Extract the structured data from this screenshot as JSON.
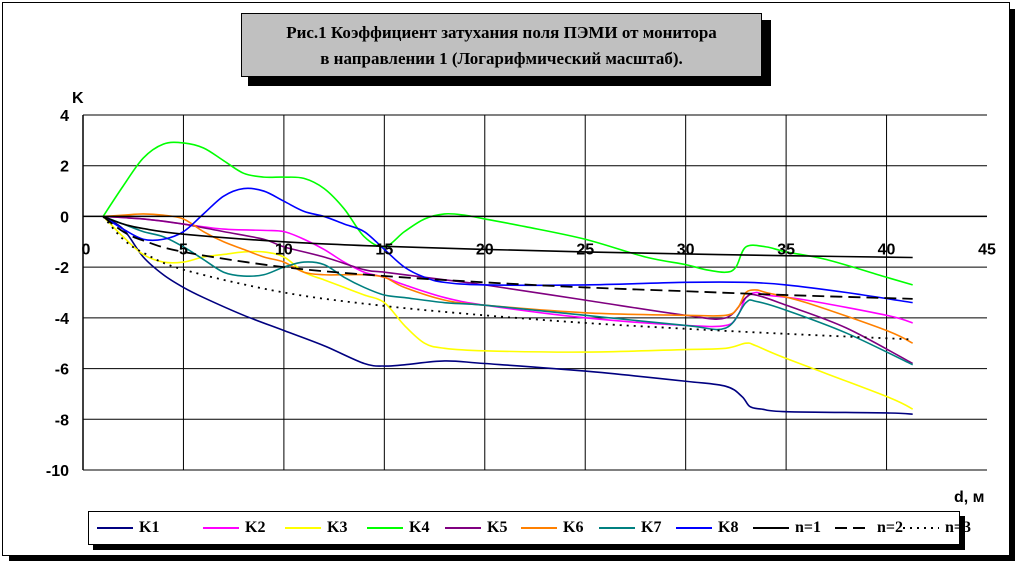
{
  "title": {
    "line1": "Рис.1 Коэффициент затухания поля ПЭМИ от  монитора",
    "line2": "в направлении 1 (Логарифмический масштаб)."
  },
  "colors": {
    "K1": "#000080",
    "K2": "#ff00ff",
    "K3": "#ffff00",
    "K4": "#00ff00",
    "K5": "#800080",
    "K6": "#ff8000",
    "K7": "#008080",
    "K8": "#0000ff",
    "n1": "#000000",
    "n2": "#000000",
    "n3": "#000000"
  },
  "chart_data": {
    "type": "line",
    "title": "Рис.1 Коэффициент затухания поля ПЭМИ от  монитора в направлении 1 (Логарифмический масштаб).",
    "xlabel": "d, м",
    "ylabel": "K",
    "xlim": [
      0,
      45
    ],
    "ylim": [
      -10,
      4
    ],
    "xticks": [
      "0",
      "5",
      "10",
      "15",
      "20",
      "25",
      "30",
      "35",
      "40",
      "45"
    ],
    "yticks": [
      "4",
      "2",
      "0",
      "-2",
      "-4",
      "-6",
      "-8",
      "-10"
    ],
    "grid": true,
    "legend_position": "bottom",
    "series": [
      {
        "name": "K1",
        "key": "K1",
        "dash": "",
        "points": [
          [
            1,
            0
          ],
          [
            2,
            -0.5
          ],
          [
            3,
            -1.6
          ],
          [
            4,
            -2.3
          ],
          [
            5,
            -2.8
          ],
          [
            6,
            -3.2
          ],
          [
            8,
            -3.9
          ],
          [
            10,
            -4.5
          ],
          [
            12,
            -5.1
          ],
          [
            14,
            -5.8
          ],
          [
            15,
            -5.9
          ],
          [
            16,
            -5.85
          ],
          [
            18,
            -5.7
          ],
          [
            20,
            -5.8
          ],
          [
            25,
            -6.1
          ],
          [
            30,
            -6.5
          ],
          [
            32,
            -6.7
          ],
          [
            32.8,
            -7.1
          ],
          [
            33.2,
            -7.5
          ],
          [
            33.8,
            -7.6
          ],
          [
            35,
            -7.7
          ],
          [
            40,
            -7.75
          ],
          [
            41.3,
            -7.8
          ]
        ]
      },
      {
        "name": "K2",
        "key": "K2",
        "dash": "",
        "points": [
          [
            1,
            0
          ],
          [
            3,
            -0.1
          ],
          [
            5,
            -0.3
          ],
          [
            7,
            -0.5
          ],
          [
            9,
            -0.55
          ],
          [
            10,
            -0.6
          ],
          [
            11,
            -0.9
          ],
          [
            12,
            -1.3
          ],
          [
            13,
            -1.8
          ],
          [
            14,
            -2.2
          ],
          [
            15,
            -2.4
          ],
          [
            16,
            -2.7
          ],
          [
            18,
            -3.2
          ],
          [
            20,
            -3.5
          ],
          [
            25,
            -4.0
          ],
          [
            30,
            -4.3
          ],
          [
            32,
            -4.3
          ],
          [
            32.6,
            -3.9
          ],
          [
            33,
            -3.2
          ],
          [
            33.5,
            -3.0
          ],
          [
            34,
            -3.1
          ],
          [
            36,
            -3.3
          ],
          [
            40,
            -3.9
          ],
          [
            41.3,
            -4.2
          ]
        ]
      },
      {
        "name": "K3",
        "key": "K3",
        "dash": "",
        "points": [
          [
            1,
            0
          ],
          [
            2,
            -0.8
          ],
          [
            3,
            -1.5
          ],
          [
            4,
            -1.8
          ],
          [
            5,
            -1.8
          ],
          [
            6,
            -1.6
          ],
          [
            7,
            -1.5
          ],
          [
            8,
            -1.4
          ],
          [
            9,
            -1.4
          ],
          [
            10,
            -1.6
          ],
          [
            11,
            -2.2
          ],
          [
            12,
            -2.5
          ],
          [
            13,
            -2.8
          ],
          [
            14,
            -3.1
          ],
          [
            15,
            -3.4
          ],
          [
            16,
            -4.3
          ],
          [
            17,
            -5.0
          ],
          [
            18,
            -5.2
          ],
          [
            20,
            -5.3
          ],
          [
            25,
            -5.35
          ],
          [
            30,
            -5.25
          ],
          [
            32,
            -5.2
          ],
          [
            33,
            -5.0
          ],
          [
            33.5,
            -5.1
          ],
          [
            35,
            -5.6
          ],
          [
            40,
            -7.1
          ],
          [
            41.3,
            -7.6
          ]
        ]
      },
      {
        "name": "K4",
        "key": "K4",
        "dash": "",
        "points": [
          [
            1,
            0
          ],
          [
            2,
            1.2
          ],
          [
            3,
            2.3
          ],
          [
            4,
            2.85
          ],
          [
            5,
            2.9
          ],
          [
            6,
            2.7
          ],
          [
            7,
            2.2
          ],
          [
            8,
            1.7
          ],
          [
            9,
            1.55
          ],
          [
            10,
            1.55
          ],
          [
            11,
            1.5
          ],
          [
            12,
            1.1
          ],
          [
            13,
            0.3
          ],
          [
            14,
            -0.8
          ],
          [
            15,
            -1.2
          ],
          [
            16,
            -0.6
          ],
          [
            17,
            -0.1
          ],
          [
            18,
            0.1
          ],
          [
            19,
            0.05
          ],
          [
            20,
            -0.1
          ],
          [
            22,
            -0.4
          ],
          [
            25,
            -0.9
          ],
          [
            28,
            -1.6
          ],
          [
            30,
            -1.9
          ],
          [
            31,
            -2.1
          ],
          [
            32,
            -2.2
          ],
          [
            32.5,
            -2.0
          ],
          [
            33,
            -1.2
          ],
          [
            34,
            -1.2
          ],
          [
            35,
            -1.4
          ],
          [
            37,
            -1.7
          ],
          [
            40,
            -2.4
          ],
          [
            41.3,
            -2.7
          ]
        ]
      },
      {
        "name": "K5",
        "key": "K5",
        "dash": "",
        "points": [
          [
            1,
            0
          ],
          [
            3,
            -0.1
          ],
          [
            5,
            -0.3
          ],
          [
            7,
            -0.6
          ],
          [
            9,
            -0.9
          ],
          [
            10,
            -1.2
          ],
          [
            12,
            -1.6
          ],
          [
            14,
            -2.1
          ],
          [
            15,
            -2.2
          ],
          [
            18,
            -2.5
          ],
          [
            20,
            -2.7
          ],
          [
            25,
            -3.3
          ],
          [
            30,
            -3.9
          ],
          [
            32,
            -4.0
          ],
          [
            33,
            -3.2
          ],
          [
            33.5,
            -3.1
          ],
          [
            35,
            -3.5
          ],
          [
            38,
            -4.4
          ],
          [
            41.3,
            -5.8
          ]
        ]
      },
      {
        "name": "K6",
        "key": "K6",
        "dash": "",
        "points": [
          [
            1,
            0
          ],
          [
            2,
            0.05
          ],
          [
            3,
            0.1
          ],
          [
            4,
            0.05
          ],
          [
            5,
            -0.1
          ],
          [
            6,
            -0.6
          ],
          [
            7,
            -1.0
          ],
          [
            8,
            -1.3
          ],
          [
            9,
            -1.6
          ],
          [
            10,
            -1.8
          ],
          [
            11,
            -2.2
          ],
          [
            12,
            -2.3
          ],
          [
            13,
            -2.3
          ],
          [
            14,
            -2.3
          ],
          [
            15,
            -2.4
          ],
          [
            16,
            -2.8
          ],
          [
            18,
            -3.3
          ],
          [
            20,
            -3.5
          ],
          [
            25,
            -3.8
          ],
          [
            30,
            -3.9
          ],
          [
            32,
            -3.9
          ],
          [
            32.6,
            -3.6
          ],
          [
            33,
            -3.0
          ],
          [
            33.5,
            -2.9
          ],
          [
            34,
            -3.0
          ],
          [
            36,
            -3.4
          ],
          [
            40,
            -4.5
          ],
          [
            41.3,
            -5.0
          ]
        ]
      },
      {
        "name": "K7",
        "key": "K7",
        "dash": "",
        "points": [
          [
            1,
            0
          ],
          [
            2,
            -0.3
          ],
          [
            3,
            -0.6
          ],
          [
            4,
            -0.8
          ],
          [
            5,
            -1.2
          ],
          [
            6,
            -1.7
          ],
          [
            7,
            -2.2
          ],
          [
            8,
            -2.35
          ],
          [
            9,
            -2.3
          ],
          [
            10,
            -2.0
          ],
          [
            11,
            -1.8
          ],
          [
            12,
            -1.9
          ],
          [
            13,
            -2.4
          ],
          [
            14,
            -2.8
          ],
          [
            15,
            -3.1
          ],
          [
            16,
            -3.2
          ],
          [
            18,
            -3.4
          ],
          [
            20,
            -3.5
          ],
          [
            25,
            -3.9
          ],
          [
            30,
            -4.3
          ],
          [
            32,
            -4.4
          ],
          [
            33,
            -3.4
          ],
          [
            33.5,
            -3.35
          ],
          [
            35,
            -3.7
          ],
          [
            38,
            -4.6
          ],
          [
            41.3,
            -5.85
          ]
        ]
      },
      {
        "name": "K8",
        "key": "K8",
        "dash": "",
        "points": [
          [
            1,
            0
          ],
          [
            2,
            -0.5
          ],
          [
            3,
            -0.9
          ],
          [
            4,
            -0.9
          ],
          [
            5,
            -0.6
          ],
          [
            6,
            0.1
          ],
          [
            7,
            0.8
          ],
          [
            8,
            1.1
          ],
          [
            9,
            1.0
          ],
          [
            10,
            0.6
          ],
          [
            11,
            0.2
          ],
          [
            12,
            0.0
          ],
          [
            13,
            -0.3
          ],
          [
            14,
            -0.6
          ],
          [
            15,
            -1.3
          ],
          [
            16,
            -2.0
          ],
          [
            17,
            -2.4
          ],
          [
            18,
            -2.6
          ],
          [
            20,
            -2.7
          ],
          [
            25,
            -2.7
          ],
          [
            30,
            -2.6
          ],
          [
            33,
            -2.6
          ],
          [
            35,
            -2.7
          ],
          [
            38,
            -3.0
          ],
          [
            41.3,
            -3.4
          ]
        ]
      },
      {
        "name": "n=1",
        "key": "n1",
        "dash": "",
        "points": [
          [
            1,
            0
          ],
          [
            2,
            -0.3
          ],
          [
            3,
            -0.48
          ],
          [
            5,
            -0.7
          ],
          [
            10,
            -1.0
          ],
          [
            15,
            -1.18
          ],
          [
            20,
            -1.3
          ],
          [
            25,
            -1.4
          ],
          [
            30,
            -1.48
          ],
          [
            35,
            -1.55
          ],
          [
            41.3,
            -1.62
          ]
        ]
      },
      {
        "name": "n=2",
        "key": "n2",
        "dash": "12,6",
        "points": [
          [
            1,
            0
          ],
          [
            2,
            -0.6
          ],
          [
            3,
            -0.95
          ],
          [
            5,
            -1.4
          ],
          [
            10,
            -2.0
          ],
          [
            15,
            -2.35
          ],
          [
            20,
            -2.6
          ],
          [
            25,
            -2.8
          ],
          [
            30,
            -2.95
          ],
          [
            35,
            -3.1
          ],
          [
            41.3,
            -3.25
          ]
        ]
      },
      {
        "name": "n=3",
        "key": "n3",
        "dash": "2,5",
        "points": [
          [
            1,
            0
          ],
          [
            2,
            -0.9
          ],
          [
            3,
            -1.43
          ],
          [
            5,
            -2.1
          ],
          [
            10,
            -3.0
          ],
          [
            15,
            -3.53
          ],
          [
            20,
            -3.9
          ],
          [
            25,
            -4.2
          ],
          [
            30,
            -4.43
          ],
          [
            35,
            -4.63
          ],
          [
            41.3,
            -4.85
          ]
        ]
      }
    ]
  }
}
